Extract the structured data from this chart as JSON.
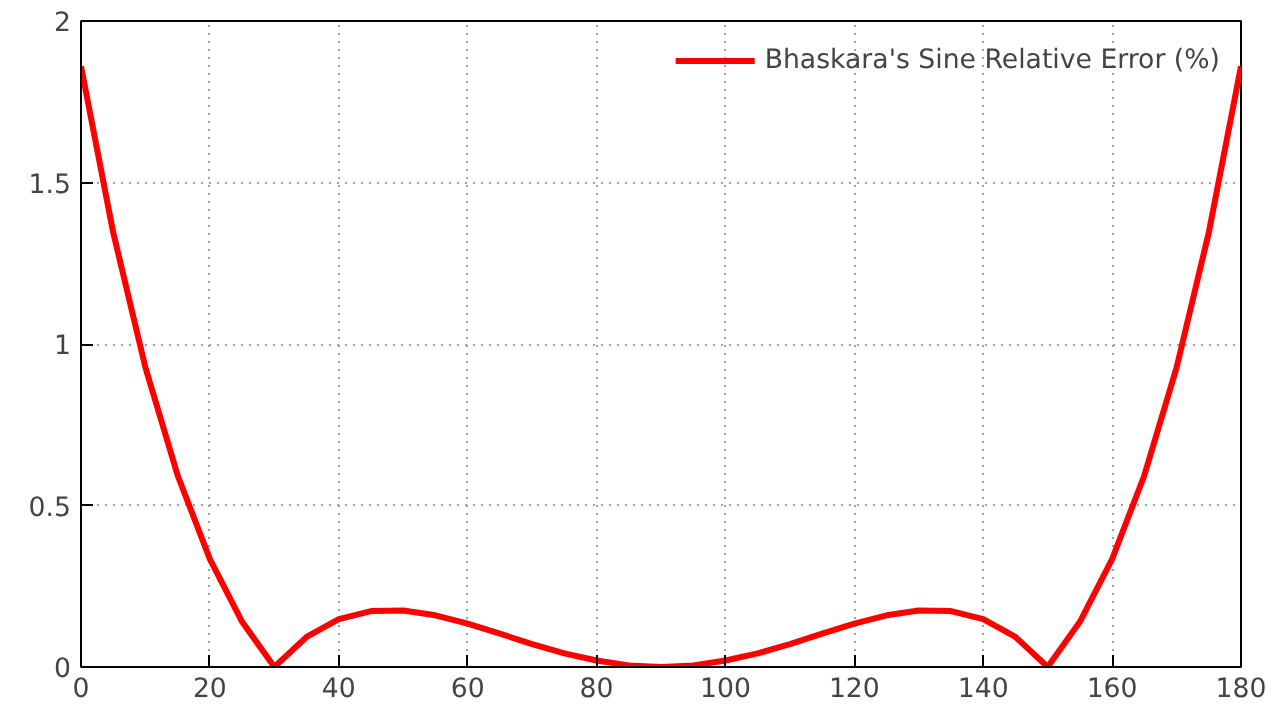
{
  "chart_data": {
    "type": "line",
    "x": [
      0,
      5,
      10,
      15,
      20,
      25,
      30,
      35,
      40,
      45,
      50,
      55,
      60,
      65,
      70,
      75,
      80,
      85,
      90,
      95,
      100,
      105,
      110,
      115,
      120,
      125,
      130,
      135,
      140,
      145,
      150,
      155,
      160,
      165,
      170,
      175,
      180
    ],
    "series": [
      {
        "name": "Bhaskara's Sine Relative Error (%)",
        "color": "#ff0000",
        "values": [
          1.86,
          1.345,
          0.927,
          0.593,
          0.334,
          0.14,
          0,
          0.093,
          0.148,
          0.173,
          0.175,
          0.16,
          0.134,
          0.103,
          0.071,
          0.042,
          0.02,
          0.005,
          0,
          0.005,
          0.02,
          0.042,
          0.071,
          0.103,
          0.134,
          0.16,
          0.175,
          0.173,
          0.148,
          0.093,
          0,
          0.14,
          0.334,
          0.593,
          0.927,
          1.345,
          1.86
        ]
      }
    ],
    "xlim": [
      0,
      180
    ],
    "xticks": [
      0,
      20,
      40,
      60,
      80,
      100,
      120,
      140,
      160,
      180
    ],
    "ylim": [
      0,
      2
    ],
    "yticks": [
      0,
      {
        "value": 0.5,
        "label": "0.5"
      },
      1,
      {
        "value": 1.5,
        "label": "1.5"
      },
      2
    ],
    "grid": true,
    "legend": "top right",
    "line_style": "solid",
    "marker": "none"
  }
}
